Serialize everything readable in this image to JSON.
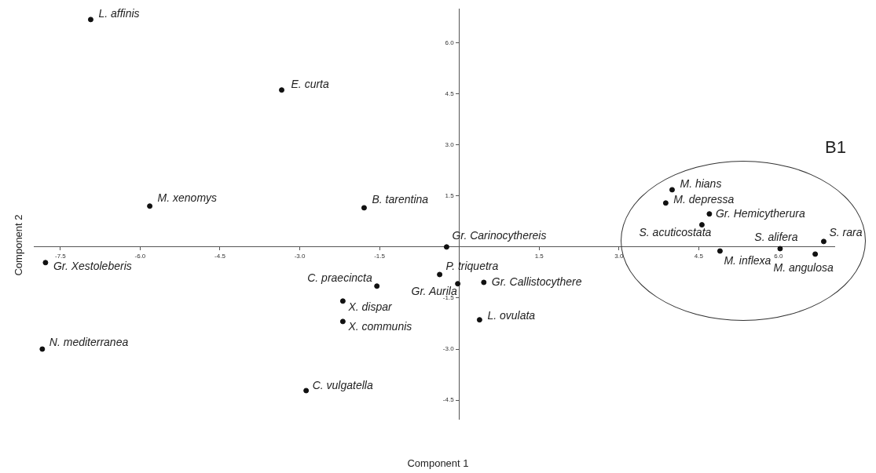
{
  "chart_data": {
    "type": "scatter",
    "xlabel": "Component 1",
    "ylabel": "Component 2",
    "x": [
      -6.93,
      -3.34,
      -5.82,
      -1.79,
      -0.24,
      -7.78,
      -7.84,
      -1.55,
      -0.37,
      -0.03,
      0.46,
      -2.19,
      -2.19,
      0.38,
      -2.88,
      4.0,
      3.88,
      4.7,
      4.56,
      4.9,
      6.03,
      6.85,
      6.69
    ],
    "values": [
      6.68,
      4.61,
      1.2,
      1.15,
      0.0,
      -0.46,
      -3.0,
      -1.15,
      -0.81,
      -1.08,
      -1.04,
      -1.59,
      -2.19,
      -2.14,
      -4.22,
      1.68,
      1.29,
      0.97,
      0.65,
      -0.12,
      -0.05,
      0.16,
      -0.21
    ],
    "color": "#111111",
    "marker": "circle",
    "grid": false,
    "legend": false,
    "xlim": [
      -8,
      7.05
    ],
    "ylim": [
      -5.05,
      7
    ],
    "xticks": [
      {
        "value": -7.5,
        "label": "-7.5"
      },
      {
        "value": -6,
        "label": "-6.0"
      },
      {
        "value": -4.5,
        "label": "-4.5"
      },
      {
        "value": -3,
        "label": "-3.0"
      },
      {
        "value": -1.5,
        "label": "-1.5"
      },
      {
        "value": 1.5,
        "label": "1.5"
      },
      {
        "value": 3,
        "label": "3.0"
      },
      {
        "value": 4.5,
        "label": "4.5"
      },
      {
        "value": 6,
        "label": "6.0"
      }
    ],
    "yticks": [
      {
        "value": -4.5,
        "label": "-4.5"
      },
      {
        "value": -3,
        "label": "-3.0"
      },
      {
        "value": -1.5,
        "label": "-1.5"
      },
      {
        "value": 1.5,
        "label": "1.5"
      },
      {
        "value": 3,
        "label": "3.0"
      },
      {
        "value": 4.5,
        "label": "4.5"
      },
      {
        "value": 6,
        "label": "6.0"
      }
    ],
    "annotations": [
      {
        "text": "L. affinis",
        "x": -6.93,
        "y": 6.68
      },
      {
        "text": "E. curta",
        "x": -3.34,
        "y": 4.61
      },
      {
        "text": "M. xenomys",
        "x": -5.82,
        "y": 1.2
      },
      {
        "text": "B. tarentina",
        "x": -1.79,
        "y": 1.15
      },
      {
        "text": "Gr. Carinocythereis",
        "x": -0.24,
        "y": 0.0
      },
      {
        "text": "Gr. Xestoleberis",
        "x": -7.78,
        "y": -0.46
      },
      {
        "text": "N. mediterranea",
        "x": -7.84,
        "y": -3.0
      },
      {
        "text": "C. praecincta",
        "x": -1.55,
        "y": -1.15
      },
      {
        "text": "P. triquetra",
        "x": -0.37,
        "y": -0.81
      },
      {
        "text": "Gr. Aurila",
        "x": -0.03,
        "y": -1.08
      },
      {
        "text": "Gr. Callistocythere",
        "x": 0.46,
        "y": -1.04
      },
      {
        "text": "X. dispar",
        "x": -2.19,
        "y": -1.59
      },
      {
        "text": "X. communis",
        "x": -2.19,
        "y": -2.19
      },
      {
        "text": "L. ovulata",
        "x": 0.38,
        "y": -2.14
      },
      {
        "text": "C. vulgatella",
        "x": -2.88,
        "y": -4.22
      },
      {
        "text": "M. hians",
        "x": 4.0,
        "y": 1.68
      },
      {
        "text": "M. depressa",
        "x": 3.88,
        "y": 1.29
      },
      {
        "text": "Gr. Hemicytherura",
        "x": 4.7,
        "y": 0.97
      },
      {
        "text": "S. acuticostata",
        "x": 4.56,
        "y": 0.65
      },
      {
        "text": "M. inflexa",
        "x": 4.9,
        "y": -0.12
      },
      {
        "text": "S. alifera",
        "x": 6.03,
        "y": -0.05
      },
      {
        "text": "S. rara",
        "x": 6.85,
        "y": 0.16
      },
      {
        "text": "M. angulosa",
        "x": 6.69,
        "y": -0.21
      },
      "B1"
    ]
  }
}
